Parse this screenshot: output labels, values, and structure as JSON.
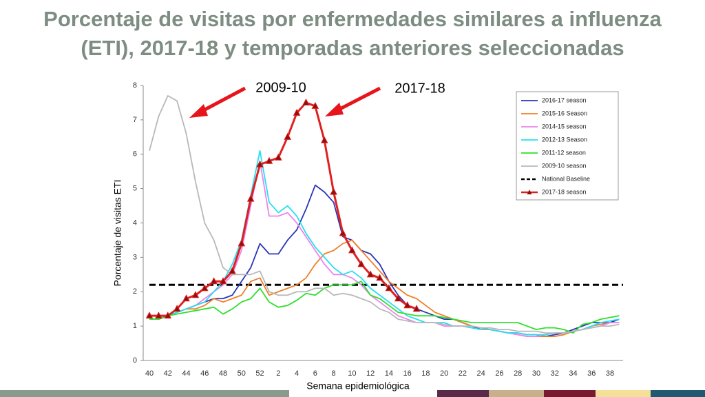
{
  "chart_data": {
    "type": "line",
    "title": [
      "Porcentaje de visitas por enfermedades similares a influenza",
      "(ETI), 2017-18 y temporadas anteriores seleccionadas"
    ],
    "x_label": "Semana epidemiológica",
    "y_label": "Porcentaje de visitas ETI",
    "categories": [
      "40",
      null,
      "42",
      null,
      "44",
      null,
      "46",
      null,
      "48",
      null,
      "50",
      null,
      "52",
      null,
      "2",
      null,
      "4",
      null,
      "6",
      null,
      "8",
      null,
      "10",
      null,
      "12",
      null,
      "14",
      null,
      "16",
      null,
      "18",
      null,
      "20",
      null,
      "22",
      null,
      "24",
      null,
      "26",
      null,
      "28",
      null,
      "30",
      null,
      "32",
      null,
      "34",
      null,
      "36",
      null,
      "38",
      null
    ],
    "ylim": [
      0,
      8
    ],
    "yticks": [
      0,
      1,
      2,
      3,
      4,
      5,
      6,
      7,
      8
    ],
    "series": [
      {
        "name": "2016-17 season",
        "color": "#2a35b5",
        "values": [
          1.2,
          1.2,
          1.3,
          1.4,
          1.5,
          1.6,
          1.7,
          1.8,
          1.8,
          1.9,
          2.3,
          2.7,
          3.4,
          3.1,
          3.1,
          3.5,
          3.8,
          4.4,
          5.1,
          4.9,
          4.6,
          3.6,
          3.5,
          3.2,
          3.1,
          2.8,
          2.3,
          1.9,
          1.6,
          1.5,
          1.4,
          1.3,
          1.2,
          1.2,
          1.1,
          1.0,
          0.9,
          0.9,
          0.85,
          0.8,
          0.8,
          0.75,
          0.75,
          0.7,
          0.75,
          0.8,
          0.9,
          1.0,
          1.1,
          1.1,
          1.1,
          1.2
        ]
      },
      {
        "name": "2015-16 Season",
        "color": "#f07f2a",
        "values": [
          1.2,
          1.2,
          1.3,
          1.4,
          1.5,
          1.5,
          1.6,
          1.8,
          1.7,
          1.8,
          1.9,
          2.3,
          2.4,
          1.9,
          2.0,
          2.1,
          2.2,
          2.4,
          2.8,
          3.1,
          3.2,
          3.4,
          3.5,
          3.2,
          2.9,
          2.6,
          2.3,
          2.1,
          1.9,
          1.8,
          1.6,
          1.4,
          1.3,
          1.2,
          1.1,
          1.0,
          0.95,
          0.9,
          0.85,
          0.8,
          0.75,
          0.7,
          0.7,
          0.7,
          0.7,
          0.75,
          0.85,
          0.9,
          1.0,
          1.05,
          1.1,
          1.1
        ]
      },
      {
        "name": "2014-15 season",
        "color": "#ee82ee",
        "values": [
          1.2,
          1.2,
          1.3,
          1.4,
          1.5,
          1.6,
          1.8,
          2.0,
          2.2,
          2.5,
          3.2,
          4.5,
          5.8,
          4.2,
          4.2,
          4.3,
          4.0,
          3.6,
          3.2,
          2.8,
          2.5,
          2.5,
          2.4,
          2.2,
          1.9,
          1.7,
          1.5,
          1.3,
          1.2,
          1.1,
          1.1,
          1.1,
          1.0,
          1.0,
          1.0,
          0.95,
          0.9,
          0.9,
          0.85,
          0.8,
          0.75,
          0.7,
          0.7,
          0.75,
          0.8,
          0.8,
          0.85,
          0.9,
          0.95,
          1.0,
          1.1,
          1.1
        ]
      },
      {
        "name": "2012-13 Season",
        "color": "#22e0f0",
        "values": [
          1.2,
          1.2,
          1.3,
          1.4,
          1.5,
          1.6,
          1.7,
          2.0,
          2.3,
          2.8,
          3.5,
          4.8,
          6.1,
          4.6,
          4.3,
          4.5,
          4.2,
          3.7,
          3.3,
          3.0,
          2.7,
          2.5,
          2.6,
          2.4,
          2.1,
          1.9,
          1.7,
          1.5,
          1.3,
          1.2,
          1.1,
          1.1,
          1.1,
          1.0,
          1.0,
          0.95,
          0.9,
          0.9,
          0.85,
          0.8,
          0.8,
          0.75,
          0.75,
          0.75,
          0.8,
          0.8,
          0.85,
          0.9,
          1.0,
          1.1,
          1.15,
          1.2
        ]
      },
      {
        "name": "2011-12 season",
        "color": "#2ee02e",
        "values": [
          1.2,
          1.2,
          1.3,
          1.35,
          1.4,
          1.45,
          1.5,
          1.55,
          1.35,
          1.5,
          1.7,
          1.8,
          2.1,
          1.7,
          1.55,
          1.6,
          1.75,
          1.95,
          1.9,
          2.1,
          2.2,
          2.2,
          2.2,
          2.3,
          1.9,
          1.8,
          1.6,
          1.4,
          1.35,
          1.3,
          1.3,
          1.3,
          1.25,
          1.2,
          1.15,
          1.1,
          1.1,
          1.1,
          1.1,
          1.1,
          1.1,
          1.0,
          0.9,
          0.95,
          0.95,
          0.9,
          0.8,
          1.05,
          1.1,
          1.2,
          1.25,
          1.3
        ]
      },
      {
        "name": "2009-10 season",
        "color": "#b8b8b8",
        "values": [
          6.1,
          7.1,
          7.7,
          7.55,
          6.6,
          5.2,
          4.0,
          3.5,
          2.7,
          2.5,
          2.5,
          2.5,
          2.6,
          2.0,
          1.9,
          1.9,
          2.0,
          2.0,
          2.1,
          2.1,
          1.9,
          1.95,
          1.9,
          1.8,
          1.7,
          1.5,
          1.4,
          1.2,
          1.15,
          1.1,
          1.1,
          1.1,
          1.05,
          1.0,
          1.0,
          1.0,
          0.95,
          0.95,
          0.9,
          0.9,
          0.85,
          0.85,
          0.85,
          0.8,
          0.8,
          0.8,
          0.85,
          0.9,
          0.95,
          1.0,
          1.0,
          1.05
        ]
      },
      {
        "name": "2017-18 season",
        "color": "#e02020",
        "marker_color": "#8b1010",
        "values": [
          1.3,
          1.3,
          1.3,
          1.5,
          1.8,
          1.9,
          2.1,
          2.3,
          2.3,
          2.6,
          3.4,
          4.7,
          5.7,
          5.8,
          5.9,
          6.5,
          7.2,
          7.5,
          7.4,
          6.4,
          4.9,
          3.7,
          3.2,
          2.8,
          2.5,
          2.4,
          2.1,
          1.8,
          1.6,
          1.5,
          null,
          null,
          null,
          null,
          null,
          null,
          null,
          null,
          null,
          null,
          null,
          null,
          null,
          null,
          null,
          null,
          null,
          null,
          null,
          null,
          null,
          null
        ]
      }
    ],
    "baseline": {
      "name": "National Baseline",
      "value": 2.2,
      "color": "#000000"
    },
    "annotations": [
      {
        "text": "2009-10"
      },
      {
        "text": "2017-18"
      }
    ]
  }
}
